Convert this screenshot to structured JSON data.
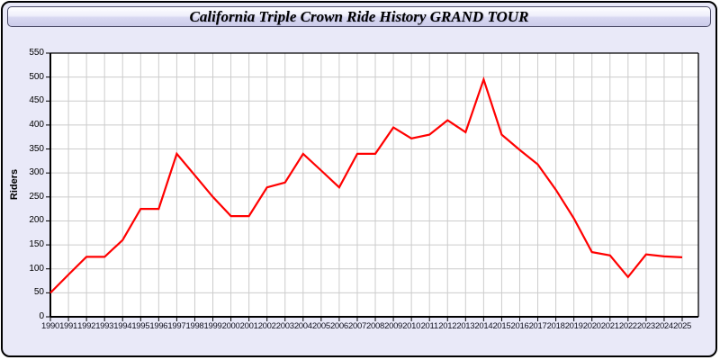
{
  "window": {
    "title": "California Triple Crown Ride History GRAND TOUR"
  },
  "chart_data": {
    "type": "line",
    "title": "California Triple Crown Ride History GRAND TOUR",
    "xlabel": "",
    "ylabel": "Riders",
    "categories": [
      "1990",
      "1991",
      "1992",
      "1993",
      "1994",
      "1995",
      "1996",
      "1997",
      "1998",
      "1999",
      "2000",
      "2001",
      "2002",
      "2003",
      "2004",
      "2005",
      "2006",
      "2007",
      "2008",
      "2009",
      "2010",
      "2011",
      "2012",
      "2013",
      "2014",
      "2015",
      "2016",
      "2017",
      "2018",
      "2019",
      "2020",
      "2021",
      "2022",
      "2023",
      "2024",
      "2025"
    ],
    "series": [
      {
        "name": "Riders",
        "color": "#ff0000",
        "values": [
          50,
          88,
          125,
          125,
          160,
          225,
          225,
          340,
          295,
          250,
          210,
          210,
          270,
          280,
          340,
          305,
          270,
          340,
          340,
          395,
          372,
          380,
          410,
          385,
          495,
          380,
          348,
          318,
          265,
          205,
          135,
          128,
          83,
          130,
          126,
          124
        ]
      }
    ],
    "ylim": [
      0,
      550
    ],
    "ytick_step": 50,
    "y_ticks": [
      0,
      50,
      100,
      150,
      200,
      250,
      300,
      350,
      400,
      450,
      500,
      550
    ],
    "grid": true,
    "legend_position": "none",
    "plot_background": "#ffffff",
    "panel_background": "#e9e9f8",
    "gridline_color": "#cccccc",
    "axis_color": "#000000"
  }
}
